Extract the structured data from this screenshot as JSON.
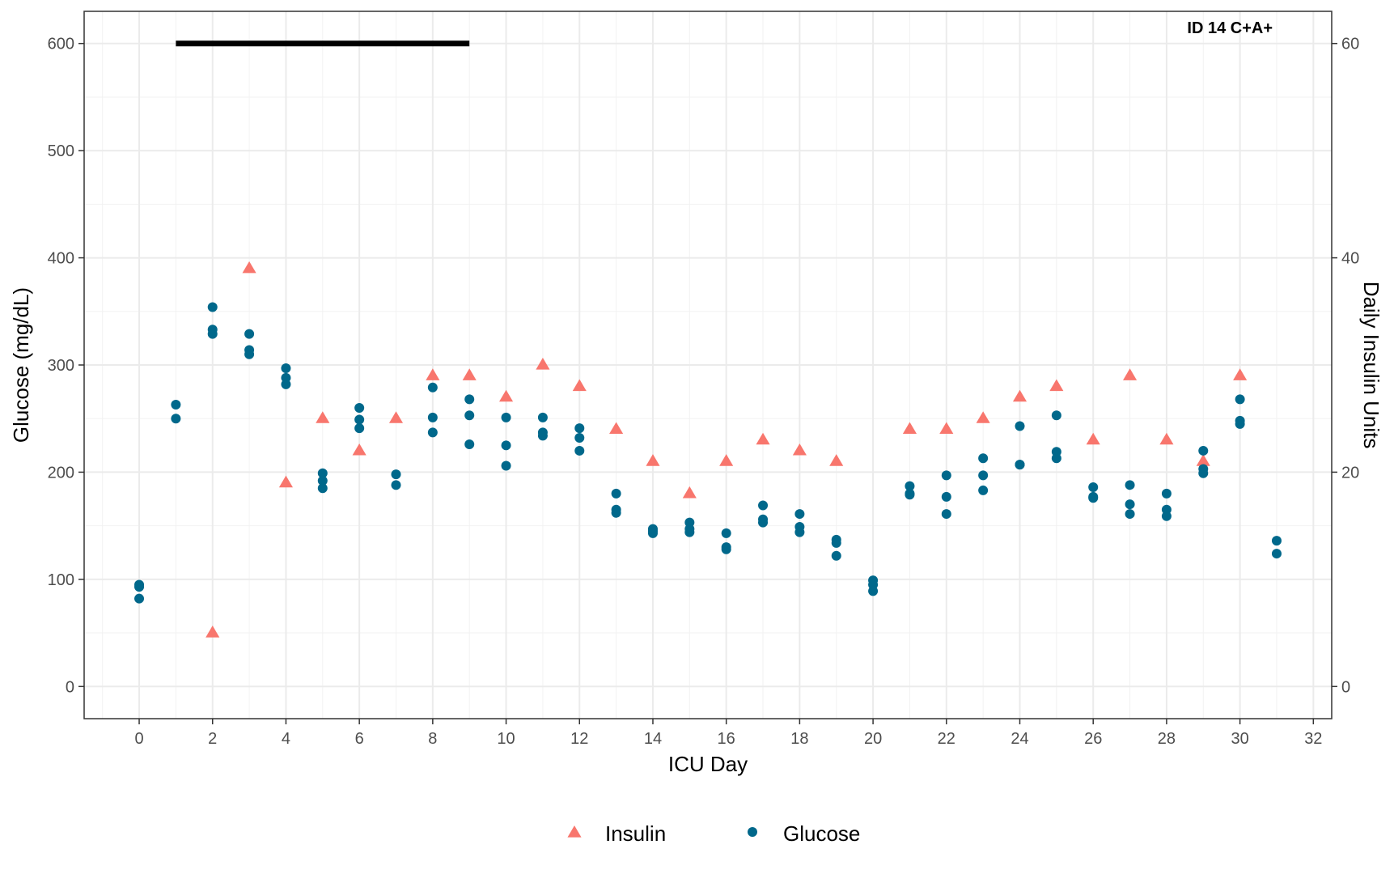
{
  "chart_data": {
    "type": "scatter",
    "title": "",
    "annotation": "ID 14 C+A+",
    "xlabel": "ICU Day",
    "ylabel": "Glucose (mg/dL)",
    "y2label": "Daily Insulin Units",
    "xlim": [
      -1.5,
      32.5
    ],
    "ylim": [
      -30,
      630
    ],
    "y2lim": [
      -3,
      63
    ],
    "x_ticks": [
      0,
      2,
      4,
      6,
      8,
      10,
      12,
      14,
      16,
      18,
      20,
      22,
      24,
      26,
      28,
      30,
      32
    ],
    "y_ticks": [
      0,
      100,
      200,
      300,
      400,
      500,
      600
    ],
    "y2_ticks": [
      0,
      20,
      40,
      60
    ],
    "grid": true,
    "legend_position": "bottom",
    "highlight_bar": {
      "x_start": 1,
      "x_end": 9,
      "y": 600,
      "color": "#000000"
    },
    "series": [
      {
        "name": "Insulin",
        "axis": "right",
        "marker": "triangle",
        "color": "#F8766D",
        "points": [
          [
            2,
            5
          ],
          [
            3,
            39
          ],
          [
            4,
            19
          ],
          [
            5,
            25
          ],
          [
            6,
            22
          ],
          [
            7,
            25
          ],
          [
            8,
            29
          ],
          [
            9,
            29
          ],
          [
            10,
            27
          ],
          [
            11,
            30
          ],
          [
            12,
            28
          ],
          [
            13,
            24
          ],
          [
            14,
            21
          ],
          [
            15,
            18
          ],
          [
            16,
            21
          ],
          [
            17,
            23
          ],
          [
            18,
            22
          ],
          [
            19,
            21
          ],
          [
            21,
            24
          ],
          [
            22,
            24
          ],
          [
            23,
            25
          ],
          [
            24,
            27
          ],
          [
            25,
            28
          ],
          [
            26,
            23
          ],
          [
            27,
            29
          ],
          [
            28,
            23
          ],
          [
            29,
            21
          ],
          [
            30,
            29
          ]
        ]
      },
      {
        "name": "Glucose",
        "axis": "left",
        "marker": "circle",
        "color": "#00688B",
        "points": [
          [
            0,
            95
          ],
          [
            0,
            93
          ],
          [
            0,
            82
          ],
          [
            1,
            263
          ],
          [
            1,
            250
          ],
          [
            2,
            354
          ],
          [
            2,
            333
          ],
          [
            2,
            329
          ],
          [
            3,
            329
          ],
          [
            3,
            314
          ],
          [
            3,
            310
          ],
          [
            4,
            297
          ],
          [
            4,
            288
          ],
          [
            4,
            282
          ],
          [
            5,
            199
          ],
          [
            5,
            192
          ],
          [
            5,
            185
          ],
          [
            6,
            260
          ],
          [
            6,
            249
          ],
          [
            6,
            241
          ],
          [
            7,
            198
          ],
          [
            7,
            188
          ],
          [
            8,
            279
          ],
          [
            8,
            251
          ],
          [
            8,
            237
          ],
          [
            9,
            268
          ],
          [
            9,
            253
          ],
          [
            9,
            226
          ],
          [
            10,
            251
          ],
          [
            10,
            225
          ],
          [
            10,
            206
          ],
          [
            11,
            251
          ],
          [
            11,
            237
          ],
          [
            11,
            234
          ],
          [
            12,
            241
          ],
          [
            12,
            232
          ],
          [
            12,
            220
          ],
          [
            13,
            180
          ],
          [
            13,
            165
          ],
          [
            13,
            162
          ],
          [
            14,
            147
          ],
          [
            14,
            145
          ],
          [
            14,
            143
          ],
          [
            15,
            153
          ],
          [
            15,
            147
          ],
          [
            15,
            144
          ],
          [
            16,
            143
          ],
          [
            16,
            130
          ],
          [
            16,
            128
          ],
          [
            17,
            169
          ],
          [
            17,
            156
          ],
          [
            17,
            153
          ],
          [
            18,
            161
          ],
          [
            18,
            149
          ],
          [
            18,
            144
          ],
          [
            19,
            137
          ],
          [
            19,
            134
          ],
          [
            19,
            122
          ],
          [
            20,
            99
          ],
          [
            20,
            95
          ],
          [
            20,
            89
          ],
          [
            21,
            187
          ],
          [
            21,
            180
          ],
          [
            21,
            179
          ],
          [
            22,
            197
          ],
          [
            22,
            177
          ],
          [
            22,
            161
          ],
          [
            23,
            213
          ],
          [
            23,
            197
          ],
          [
            23,
            183
          ],
          [
            24,
            243
          ],
          [
            24,
            207
          ],
          [
            24,
            207
          ],
          [
            25,
            253
          ],
          [
            25,
            219
          ],
          [
            25,
            213
          ],
          [
            26,
            186
          ],
          [
            26,
            177
          ],
          [
            26,
            176
          ],
          [
            27,
            188
          ],
          [
            27,
            170
          ],
          [
            27,
            161
          ],
          [
            28,
            180
          ],
          [
            28,
            165
          ],
          [
            28,
            159
          ],
          [
            29,
            220
          ],
          [
            29,
            203
          ],
          [
            29,
            199
          ],
          [
            30,
            268
          ],
          [
            30,
            248
          ],
          [
            30,
            245
          ],
          [
            31,
            136
          ],
          [
            31,
            124
          ]
        ]
      }
    ]
  }
}
